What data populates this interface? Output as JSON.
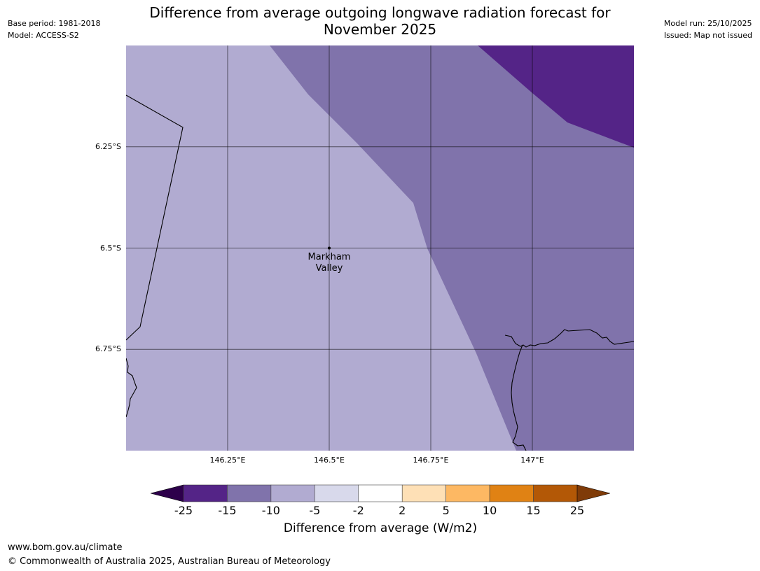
{
  "header": {
    "base_period": "Base period: 1981-2018",
    "model": "Model: ACCESS-S2",
    "model_run": "Model run: 25/10/2025",
    "issued": "Issued: Map not issued",
    "title_line1": "Difference from average outgoing longwave radiation forecast for",
    "title_line2": "November 2025"
  },
  "map": {
    "lat_labels": [
      "6.25°S",
      "6.5°S",
      "6.75°S"
    ],
    "lon_labels": [
      "146.25°E",
      "146.5°E",
      "146.75°E",
      "147°E"
    ],
    "place": {
      "name_line1": "Markham",
      "name_line2": "Valley",
      "lat": -6.5,
      "lon": 146.5
    },
    "extent": {
      "lon_min": 146.0,
      "lon_max": 147.25,
      "lat_min": -7.0,
      "lat_max": -6.0
    },
    "fill_colors": {
      "minus10_to_minus5": "#b1abd1",
      "minus15_to_minus10": "#8073ab",
      "minus25_to_minus15": "#542487"
    }
  },
  "colorbar": {
    "label": "Difference from average (W/m2)",
    "ticks": [
      "-25",
      "-15",
      "-10",
      "-5",
      "-2",
      "2",
      "5",
      "10",
      "15",
      "25"
    ],
    "colors": [
      "#542487",
      "#8073ab",
      "#b1abd1",
      "#d8d9eb",
      "#ffffff",
      "#fee0b6",
      "#fdb863",
      "#e08214",
      "#b35806"
    ],
    "under_color": "#2d004b",
    "over_color": "#7f3b08"
  },
  "footer": {
    "url": "www.bom.gov.au/climate",
    "copyright": "© Commonwealth of Australia 2025, Australian Bureau of Meteorology"
  }
}
